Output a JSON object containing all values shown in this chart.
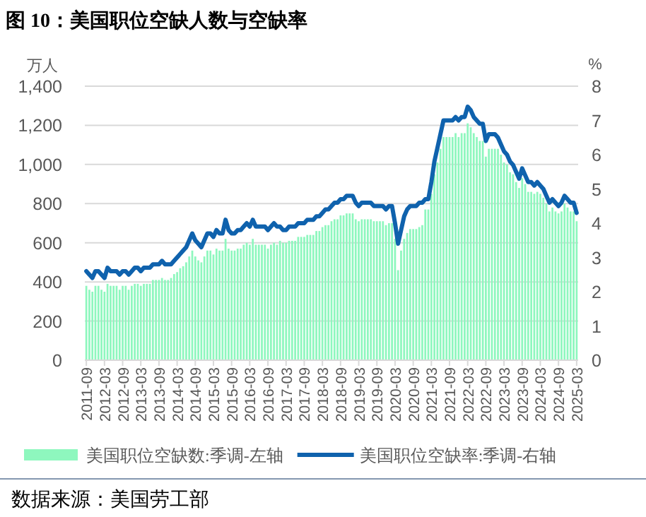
{
  "chart_data": {
    "type": "bar",
    "title": "图 10：美国职位空缺人数与空缺率",
    "ylabel": "万人",
    "y2label": "%",
    "categories": [
      "2011-09",
      null,
      null,
      null,
      null,
      null,
      "2012-03",
      null,
      null,
      null,
      null,
      null,
      "2012-09",
      null,
      null,
      null,
      null,
      null,
      "2013-03",
      null,
      null,
      null,
      null,
      null,
      "2013-09",
      null,
      null,
      null,
      null,
      null,
      "2014-03",
      null,
      null,
      null,
      null,
      null,
      "2014-09",
      null,
      null,
      null,
      null,
      null,
      "2015-03",
      null,
      null,
      null,
      null,
      null,
      "2015-09",
      null,
      null,
      null,
      null,
      null,
      "2016-03",
      null,
      null,
      null,
      null,
      null,
      "2016-09",
      null,
      null,
      null,
      null,
      null,
      "2017-03",
      null,
      null,
      null,
      null,
      null,
      "2017-09",
      null,
      null,
      null,
      null,
      null,
      "2018-03",
      null,
      null,
      null,
      null,
      null,
      "2018-09",
      null,
      null,
      null,
      null,
      null,
      "2019-03",
      null,
      null,
      null,
      null,
      null,
      "2019-09",
      null,
      null,
      null,
      null,
      null,
      "2020-03",
      null,
      null,
      null,
      null,
      null,
      "2020-09",
      null,
      null,
      null,
      null,
      null,
      "2021-03",
      null,
      null,
      null,
      null,
      null,
      "2021-09",
      null,
      null,
      null,
      null,
      null,
      "2022-03",
      null,
      null,
      null,
      null,
      null,
      "2022-09",
      null,
      null,
      null,
      null,
      null,
      "2023-03",
      null,
      null,
      null,
      null,
      null,
      "2023-09",
      null,
      null,
      null,
      null,
      null,
      "2024-03",
      null,
      null,
      null,
      null,
      null,
      "2024-09",
      null,
      null,
      null,
      null,
      null,
      "2025-03"
    ],
    "series": [
      {
        "name": "美国职位空缺数:季调-左轴",
        "color": "#8ef7be",
        "values": [
          380,
          360,
          350,
          380,
          380,
          360,
          350,
          390,
          380,
          380,
          380,
          360,
          380,
          380,
          360,
          380,
          390,
          390,
          380,
          390,
          390,
          390,
          410,
          410,
          410,
          420,
          410,
          410,
          420,
          440,
          450,
          470,
          480,
          500,
          530,
          560,
          530,
          510,
          500,
          530,
          560,
          560,
          540,
          570,
          560,
          560,
          620,
          570,
          560,
          560,
          570,
          570,
          590,
          600,
          590,
          620,
          590,
          590,
          590,
          590,
          570,
          590,
          600,
          590,
          610,
          600,
          600,
          610,
          610,
          610,
          630,
          630,
          630,
          640,
          640,
          640,
          660,
          660,
          680,
          690,
          690,
          710,
          720,
          720,
          740,
          740,
          750,
          750,
          750,
          720,
          710,
          720,
          720,
          720,
          720,
          710,
          710,
          710,
          710,
          690,
          700,
          700,
          620,
          460,
          560,
          620,
          650,
          670,
          670,
          670,
          680,
          690,
          770,
          770,
          850,
          950,
          1010,
          1080,
          1140,
          1140,
          1140,
          1140,
          1160,
          1140,
          1160,
          1160,
          1210,
          1190,
          1160,
          1140,
          1120,
          1120,
          1040,
          1080,
          1080,
          1080,
          1080,
          1050,
          1010,
          1000,
          960,
          950,
          910,
          880,
          930,
          900,
          860,
          860,
          850,
          860,
          850,
          830,
          800,
          760,
          780,
          760,
          750,
          760,
          800,
          780,
          760,
          760,
          710
        ]
      },
      {
        "name": "美国职位空缺率:季调-右轴",
        "type": "line",
        "axis": "y2",
        "color": "#0f62ad",
        "values": [
          2.6,
          2.5,
          2.4,
          2.6,
          2.6,
          2.5,
          2.4,
          2.7,
          2.6,
          2.6,
          2.6,
          2.5,
          2.6,
          2.6,
          2.5,
          2.6,
          2.7,
          2.7,
          2.6,
          2.7,
          2.7,
          2.7,
          2.8,
          2.8,
          2.8,
          2.9,
          2.8,
          2.8,
          2.8,
          2.9,
          3.0,
          3.1,
          3.2,
          3.3,
          3.5,
          3.7,
          3.5,
          3.4,
          3.3,
          3.5,
          3.7,
          3.7,
          3.6,
          3.8,
          3.7,
          3.7,
          4.1,
          3.8,
          3.7,
          3.7,
          3.8,
          3.8,
          3.9,
          4.0,
          3.9,
          4.1,
          3.9,
          3.9,
          3.9,
          3.9,
          3.8,
          3.9,
          4.0,
          3.9,
          3.9,
          3.8,
          3.8,
          3.9,
          3.9,
          3.9,
          4.0,
          4.0,
          4.0,
          4.1,
          4.1,
          4.1,
          4.2,
          4.2,
          4.3,
          4.4,
          4.4,
          4.5,
          4.6,
          4.6,
          4.7,
          4.7,
          4.8,
          4.8,
          4.8,
          4.6,
          4.5,
          4.6,
          4.6,
          4.6,
          4.6,
          4.5,
          4.5,
          4.5,
          4.5,
          4.4,
          4.5,
          4.5,
          4.0,
          3.4,
          3.8,
          4.2,
          4.4,
          4.5,
          4.5,
          4.5,
          4.6,
          4.6,
          4.7,
          4.7,
          5.2,
          5.8,
          6.2,
          6.6,
          7.0,
          7.0,
          7.0,
          7.0,
          7.1,
          7.0,
          7.1,
          7.1,
          7.4,
          7.3,
          7.1,
          7.0,
          6.9,
          6.9,
          6.4,
          6.6,
          6.6,
          6.6,
          6.5,
          6.3,
          6.1,
          6.0,
          5.8,
          5.7,
          5.5,
          5.3,
          5.6,
          5.4,
          5.2,
          5.2,
          5.1,
          5.2,
          5.1,
          5.0,
          4.8,
          4.6,
          4.7,
          4.6,
          4.5,
          4.6,
          4.8,
          4.7,
          4.6,
          4.6,
          4.3
        ]
      }
    ],
    "ylim": [
      0,
      1400
    ],
    "yticks": [
      0,
      200,
      400,
      600,
      800,
      {
        "value": 1000,
        "label": "1,000"
      },
      {
        "value": 1200,
        "label": "1,200"
      },
      {
        "value": 1400,
        "label": "1,400"
      }
    ],
    "y2lim": [
      0,
      8
    ],
    "y2ticks": [
      0,
      1,
      2,
      3,
      4,
      5,
      6,
      7,
      8
    ],
    "grid": "y",
    "legend": "bottom",
    "annotations": [
      "数据来源：美国劳工部"
    ]
  }
}
